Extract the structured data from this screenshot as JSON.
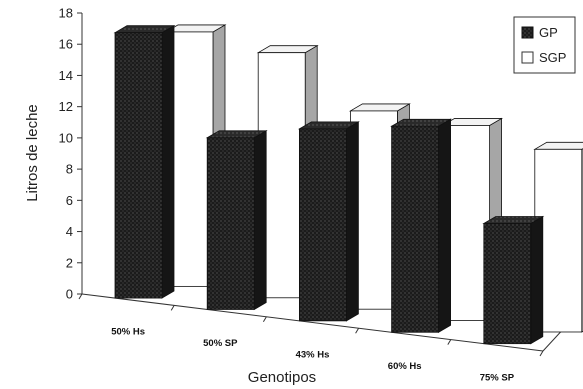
{
  "chart_data": {
    "type": "bar",
    "variant": "3d-clustered",
    "categories": [
      "50% Hs",
      "50% SP",
      "43% Hs",
      "60% Hs",
      "75% SP"
    ],
    "series": [
      {
        "name": "GP",
        "values": [
          17.0,
          11.0,
          12.3,
          13.2,
          7.7
        ],
        "color": "#1b1b1b",
        "pattern": "dotted"
      },
      {
        "name": "SGP",
        "values": [
          16.3,
          15.7,
          12.7,
          12.5,
          11.7
        ],
        "color": "#ffffff",
        "pattern": "none"
      }
    ],
    "title": "",
    "xlabel": "Genotipos",
    "ylabel": "Litros de leche",
    "ylim": [
      0,
      18
    ],
    "yticks": [
      "0",
      "2",
      "4",
      "6",
      "8",
      "10",
      "12",
      "14",
      "16",
      "18"
    ],
    "grid": false,
    "legend_position": "top-right"
  }
}
